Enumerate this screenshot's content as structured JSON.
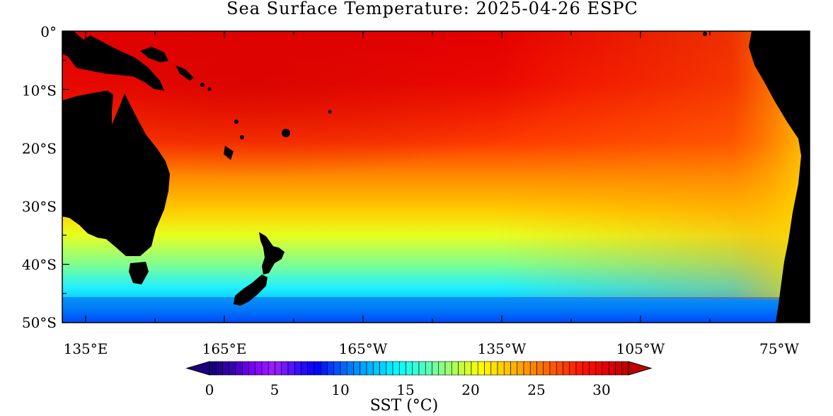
{
  "title": "Sea Surface Temperature: 2025-04-26 ESPC",
  "lat_labels": [
    "0°",
    "10°S",
    "20°S",
    "30°S",
    "40°S",
    "50°S"
  ],
  "lon_labels": [
    "135°E",
    "165°E",
    "165°W",
    "135°W",
    "105°W",
    "75°W"
  ],
  "colorbar": {
    "label": "SST (°C)",
    "ticks": [
      "0",
      "5",
      "10",
      "15",
      "20",
      "25",
      "30"
    ],
    "range": [
      0,
      32
    ],
    "colors": [
      "#1a007a",
      "#3a00b8",
      "#7f00ff",
      "#a020ff",
      "#4010ff",
      "#0000ff",
      "#0050ff",
      "#0090ff",
      "#00c8ff",
      "#00ffff",
      "#40ffd0",
      "#80ff90",
      "#c0ff40",
      "#ffff00",
      "#ffd000",
      "#ffa000",
      "#ff7000",
      "#ff4000",
      "#ff1000",
      "#e80000",
      "#c00000"
    ]
  },
  "map": {
    "land_color": "#000000",
    "sst_gradient": [
      {
        "lat": "0°",
        "color": "#e40000"
      },
      {
        "lat": "10°S",
        "color": "#f00a00"
      },
      {
        "lat": "20°S",
        "color": "#ff4400"
      },
      {
        "lat": "30°S",
        "color": "#ffbb00"
      },
      {
        "lat": "40°S",
        "color": "#a8ff50"
      },
      {
        "lat": "50°S",
        "color": "#0078ff"
      }
    ]
  }
}
